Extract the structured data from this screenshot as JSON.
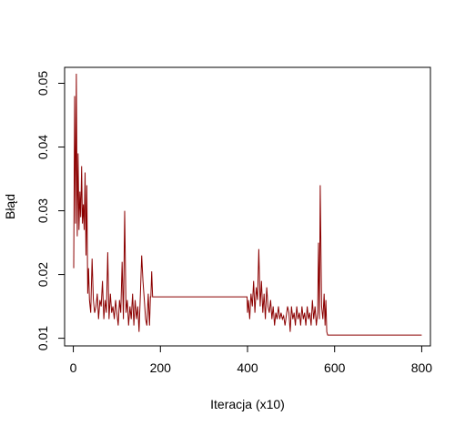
{
  "chart_data": {
    "type": "line",
    "title": "",
    "xlabel": "Iteracja (x10)",
    "ylabel": "Błąd",
    "xlim": [
      -20,
      820
    ],
    "ylim": [
      0.0088,
      0.0525
    ],
    "x_ticks": [
      0,
      200,
      400,
      600,
      800
    ],
    "x_tick_labels": [
      "0",
      "200",
      "400",
      "600",
      "800"
    ],
    "y_ticks": [
      0.01,
      0.02,
      0.03,
      0.04,
      0.05
    ],
    "y_tick_labels": [
      "0.01",
      "0.02",
      "0.03",
      "0.04",
      "0.05"
    ],
    "grid": false,
    "legend": "none",
    "line_color": "#8B0000",
    "series": [
      {
        "x": [
          1,
          3,
          5,
          7,
          9,
          11,
          13,
          15,
          17,
          19,
          21,
          23,
          25,
          27,
          29,
          31,
          33,
          35,
          37,
          40,
          43,
          46,
          49,
          52,
          55,
          58,
          61,
          64,
          67,
          70,
          73,
          76,
          79,
          82,
          85,
          88,
          91,
          94,
          97,
          100,
          103,
          106,
          109,
          112,
          115,
          118,
          121,
          124,
          127,
          130,
          133,
          136,
          139,
          142,
          145,
          148,
          151,
          154,
          157,
          160,
          163,
          166,
          169,
          172,
          175,
          177,
          178,
          180,
          182,
          185,
          190,
          200,
          250,
          300,
          350,
          399,
          400,
          402,
          405,
          408,
          411,
          414,
          417,
          420,
          423,
          426,
          429,
          432,
          435,
          438,
          441,
          444,
          447,
          450,
          453,
          456,
          459,
          462,
          465,
          468,
          471,
          474,
          477,
          480,
          483,
          486,
          489,
          492,
          495,
          498,
          501,
          504,
          507,
          510,
          513,
          516,
          519,
          522,
          525,
          528,
          531,
          534,
          537,
          540,
          543,
          546,
          549,
          552,
          555,
          558,
          561,
          563,
          565,
          567,
          570,
          573,
          576,
          578,
          580,
          582,
          584,
          600,
          700,
          800
        ],
        "y": [
          0.021,
          0.048,
          0.028,
          0.0515,
          0.026,
          0.039,
          0.027,
          0.033,
          0.029,
          0.037,
          0.028,
          0.031,
          0.027,
          0.036,
          0.023,
          0.034,
          0.017,
          0.021,
          0.016,
          0.014,
          0.0225,
          0.016,
          0.014,
          0.015,
          0.017,
          0.013,
          0.016,
          0.015,
          0.019,
          0.013,
          0.016,
          0.014,
          0.0235,
          0.013,
          0.017,
          0.014,
          0.015,
          0.013,
          0.016,
          0.014,
          0.012,
          0.016,
          0.014,
          0.022,
          0.013,
          0.03,
          0.014,
          0.016,
          0.012,
          0.015,
          0.013,
          0.017,
          0.012,
          0.016,
          0.013,
          0.015,
          0.011,
          0.017,
          0.023,
          0.019,
          0.016,
          0.013,
          0.012,
          0.017,
          0.012,
          0.0165,
          0.0165,
          0.0205,
          0.0165,
          0.0165,
          0.0165,
          0.0165,
          0.0165,
          0.0165,
          0.0165,
          0.0165,
          0.014,
          0.016,
          0.013,
          0.017,
          0.015,
          0.019,
          0.014,
          0.018,
          0.016,
          0.024,
          0.015,
          0.019,
          0.014,
          0.017,
          0.013,
          0.018,
          0.015,
          0.014,
          0.016,
          0.013,
          0.015,
          0.012,
          0.014,
          0.013,
          0.015,
          0.013,
          0.014,
          0.013,
          0.0135,
          0.012,
          0.0135,
          0.015,
          0.014,
          0.011,
          0.015,
          0.013,
          0.014,
          0.012,
          0.015,
          0.013,
          0.014,
          0.012,
          0.015,
          0.013,
          0.014,
          0.012,
          0.015,
          0.013,
          0.014,
          0.012,
          0.016,
          0.013,
          0.015,
          0.012,
          0.014,
          0.025,
          0.013,
          0.034,
          0.015,
          0.013,
          0.017,
          0.012,
          0.016,
          0.011,
          0.0105,
          0.0105,
          0.0105,
          0.0105
        ]
      }
    ]
  }
}
